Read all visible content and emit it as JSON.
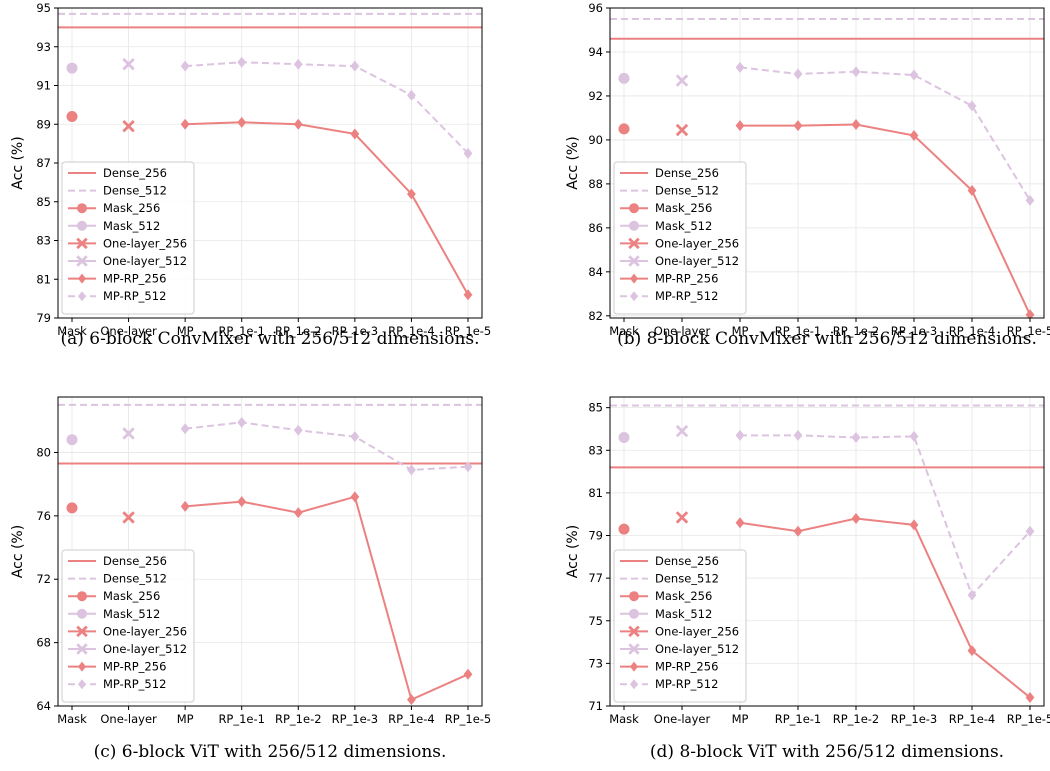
{
  "colors": {
    "c256": "#ec8181",
    "c512": "#dcc3e0"
  },
  "chart_data": [
    {
      "type": "line",
      "caption": "(a) 6-block ConvMixer with 256/512 dimensions.",
      "ylabel": "Acc (%)",
      "categories": [
        "Mask",
        "One-layer",
        "MP",
        "RP_1e-1",
        "RP_1e-2",
        "RP_1e-3",
        "RP_1e-4",
        "RP_1e-5"
      ],
      "ylim": [
        79,
        95
      ],
      "yticks": [
        "79",
        "81",
        "83",
        "85",
        "87",
        "89",
        "91",
        "93",
        "95"
      ],
      "grid": true,
      "legend_position": "lower left",
      "series": [
        {
          "name": "Dense_256",
          "kind": "hline",
          "value": 94.0,
          "color": "#ec8181",
          "dash": false
        },
        {
          "name": "Dense_512",
          "kind": "hline",
          "value": 94.7,
          "color": "#dcc3e0",
          "dash": true
        },
        {
          "name": "Mask_256",
          "kind": "marker",
          "marker": "circle",
          "x": "Mask",
          "value": 89.4,
          "color": "#ec8181"
        },
        {
          "name": "Mask_512",
          "kind": "marker",
          "marker": "circle",
          "x": "Mask",
          "value": 91.9,
          "color": "#dcc3e0"
        },
        {
          "name": "One-layer_256",
          "kind": "marker",
          "marker": "x",
          "x": "One-layer",
          "value": 88.9,
          "color": "#ec8181"
        },
        {
          "name": "One-layer_512",
          "kind": "marker",
          "marker": "x",
          "x": "One-layer",
          "value": 92.1,
          "color": "#dcc3e0"
        },
        {
          "name": "MP-RP_256",
          "kind": "line",
          "marker": "diamond",
          "x": [
            "MP",
            "RP_1e-1",
            "RP_1e-2",
            "RP_1e-3",
            "RP_1e-4",
            "RP_1e-5"
          ],
          "values": [
            89.0,
            89.1,
            89.0,
            88.5,
            85.4,
            80.2
          ],
          "color": "#ec8181",
          "dash": false
        },
        {
          "name": "MP-RP_512",
          "kind": "line",
          "marker": "diamond",
          "x": [
            "MP",
            "RP_1e-1",
            "RP_1e-2",
            "RP_1e-3",
            "RP_1e-4",
            "RP_1e-5"
          ],
          "values": [
            92.0,
            92.2,
            92.1,
            92.0,
            90.5,
            87.5
          ],
          "color": "#dcc3e0",
          "dash": true
        }
      ]
    },
    {
      "type": "line",
      "caption": "(b) 8-block ConvMixer with 256/512 dimensions.",
      "ylabel": "Acc (%)",
      "categories": [
        "Mask",
        "One-layer",
        "MP",
        "RP_1e-1",
        "RP_1e-2",
        "RP_1e-3",
        "RP_1e-4",
        "RP_1e-5"
      ],
      "ylim": [
        81.9,
        96
      ],
      "yticks": [
        "82",
        "84",
        "86",
        "88",
        "90",
        "92",
        "94",
        "96"
      ],
      "grid": true,
      "legend_position": "lower left",
      "series": [
        {
          "name": "Dense_256",
          "kind": "hline",
          "value": 94.6,
          "color": "#ec8181",
          "dash": false
        },
        {
          "name": "Dense_512",
          "kind": "hline",
          "value": 95.5,
          "color": "#dcc3e0",
          "dash": true
        },
        {
          "name": "Mask_256",
          "kind": "marker",
          "marker": "circle",
          "x": "Mask",
          "value": 90.5,
          "color": "#ec8181"
        },
        {
          "name": "Mask_512",
          "kind": "marker",
          "marker": "circle",
          "x": "Mask",
          "value": 92.8,
          "color": "#dcc3e0"
        },
        {
          "name": "One-layer_256",
          "kind": "marker",
          "marker": "x",
          "x": "One-layer",
          "value": 90.45,
          "color": "#ec8181"
        },
        {
          "name": "One-layer_512",
          "kind": "marker",
          "marker": "x",
          "x": "One-layer",
          "value": 92.7,
          "color": "#dcc3e0"
        },
        {
          "name": "MP-RP_256",
          "kind": "line",
          "marker": "diamond",
          "x": [
            "MP",
            "RP_1e-1",
            "RP_1e-2",
            "RP_1e-3",
            "RP_1e-4",
            "RP_1e-5"
          ],
          "values": [
            90.65,
            90.65,
            90.7,
            90.2,
            87.7,
            82.05
          ],
          "color": "#ec8181",
          "dash": false
        },
        {
          "name": "MP-RP_512",
          "kind": "line",
          "marker": "diamond",
          "x": [
            "MP",
            "RP_1e-1",
            "RP_1e-2",
            "RP_1e-3",
            "RP_1e-4",
            "RP_1e-5"
          ],
          "values": [
            93.3,
            93.0,
            93.1,
            92.95,
            91.55,
            87.25
          ],
          "color": "#dcc3e0",
          "dash": true
        }
      ]
    },
    {
      "type": "line",
      "caption": "(c) 6-block ViT with 256/512 dimensions.",
      "ylabel": "Acc (%)",
      "categories": [
        "Mask",
        "One-layer",
        "MP",
        "RP_1e-1",
        "RP_1e-2",
        "RP_1e-3",
        "RP_1e-4",
        "RP_1e-5"
      ],
      "ylim": [
        64,
        83.5
      ],
      "yticks": [
        "64",
        "68",
        "72",
        "76",
        "80"
      ],
      "grid": true,
      "legend_position": "lower left",
      "series": [
        {
          "name": "Dense_256",
          "kind": "hline",
          "value": 79.3,
          "color": "#ec8181",
          "dash": false
        },
        {
          "name": "Dense_512",
          "kind": "hline",
          "value": 83.0,
          "color": "#dcc3e0",
          "dash": true
        },
        {
          "name": "Mask_256",
          "kind": "marker",
          "marker": "circle",
          "x": "Mask",
          "value": 76.5,
          "color": "#ec8181"
        },
        {
          "name": "Mask_512",
          "kind": "marker",
          "marker": "circle",
          "x": "Mask",
          "value": 80.8,
          "color": "#dcc3e0"
        },
        {
          "name": "One-layer_256",
          "kind": "marker",
          "marker": "x",
          "x": "One-layer",
          "value": 75.9,
          "color": "#ec8181"
        },
        {
          "name": "One-layer_512",
          "kind": "marker",
          "marker": "x",
          "x": "One-layer",
          "value": 81.2,
          "color": "#dcc3e0"
        },
        {
          "name": "MP-RP_256",
          "kind": "line",
          "marker": "diamond",
          "x": [
            "MP",
            "RP_1e-1",
            "RP_1e-2",
            "RP_1e-3",
            "RP_1e-4",
            "RP_1e-5"
          ],
          "values": [
            76.6,
            76.9,
            76.2,
            77.2,
            64.4,
            66.0
          ],
          "color": "#ec8181",
          "dash": false
        },
        {
          "name": "MP-RP_512",
          "kind": "line",
          "marker": "diamond",
          "x": [
            "MP",
            "RP_1e-1",
            "RP_1e-2",
            "RP_1e-3",
            "RP_1e-4",
            "RP_1e-5"
          ],
          "values": [
            81.5,
            81.9,
            81.4,
            81.0,
            78.9,
            79.1
          ],
          "color": "#dcc3e0",
          "dash": true
        }
      ]
    },
    {
      "type": "line",
      "caption": "(d) 8-block ViT with 256/512 dimensions.",
      "ylabel": "Acc (%)",
      "categories": [
        "Mask",
        "One-layer",
        "MP",
        "RP_1e-1",
        "RP_1e-2",
        "RP_1e-3",
        "RP_1e-4",
        "RP_1e-5"
      ],
      "ylim": [
        71,
        85.5
      ],
      "yticks": [
        "71",
        "73",
        "75",
        "77",
        "79",
        "81",
        "83",
        "85"
      ],
      "grid": true,
      "legend_position": "lower left",
      "series": [
        {
          "name": "Dense_256",
          "kind": "hline",
          "value": 82.2,
          "color": "#ec8181",
          "dash": false
        },
        {
          "name": "Dense_512",
          "kind": "hline",
          "value": 85.1,
          "color": "#dcc3e0",
          "dash": true
        },
        {
          "name": "Mask_256",
          "kind": "marker",
          "marker": "circle",
          "x": "Mask",
          "value": 79.3,
          "color": "#ec8181"
        },
        {
          "name": "Mask_512",
          "kind": "marker",
          "marker": "circle",
          "x": "Mask",
          "value": 83.6,
          "color": "#dcc3e0"
        },
        {
          "name": "One-layer_256",
          "kind": "marker",
          "marker": "x",
          "x": "One-layer",
          "value": 79.85,
          "color": "#ec8181"
        },
        {
          "name": "One-layer_512",
          "kind": "marker",
          "marker": "x",
          "x": "One-layer",
          "value": 83.9,
          "color": "#dcc3e0"
        },
        {
          "name": "MP-RP_256",
          "kind": "line",
          "marker": "diamond",
          "x": [
            "MP",
            "RP_1e-1",
            "RP_1e-2",
            "RP_1e-3",
            "RP_1e-4",
            "RP_1e-5"
          ],
          "values": [
            79.6,
            79.2,
            79.8,
            79.5,
            73.6,
            71.4
          ],
          "color": "#ec8181",
          "dash": false
        },
        {
          "name": "MP-RP_512",
          "kind": "line",
          "marker": "diamond",
          "x": [
            "MP",
            "RP_1e-1",
            "RP_1e-2",
            "RP_1e-3",
            "RP_1e-4",
            "RP_1e-5"
          ],
          "values": [
            83.7,
            83.7,
            83.6,
            83.65,
            76.2,
            79.2
          ],
          "color": "#dcc3e0",
          "dash": true
        }
      ]
    }
  ]
}
